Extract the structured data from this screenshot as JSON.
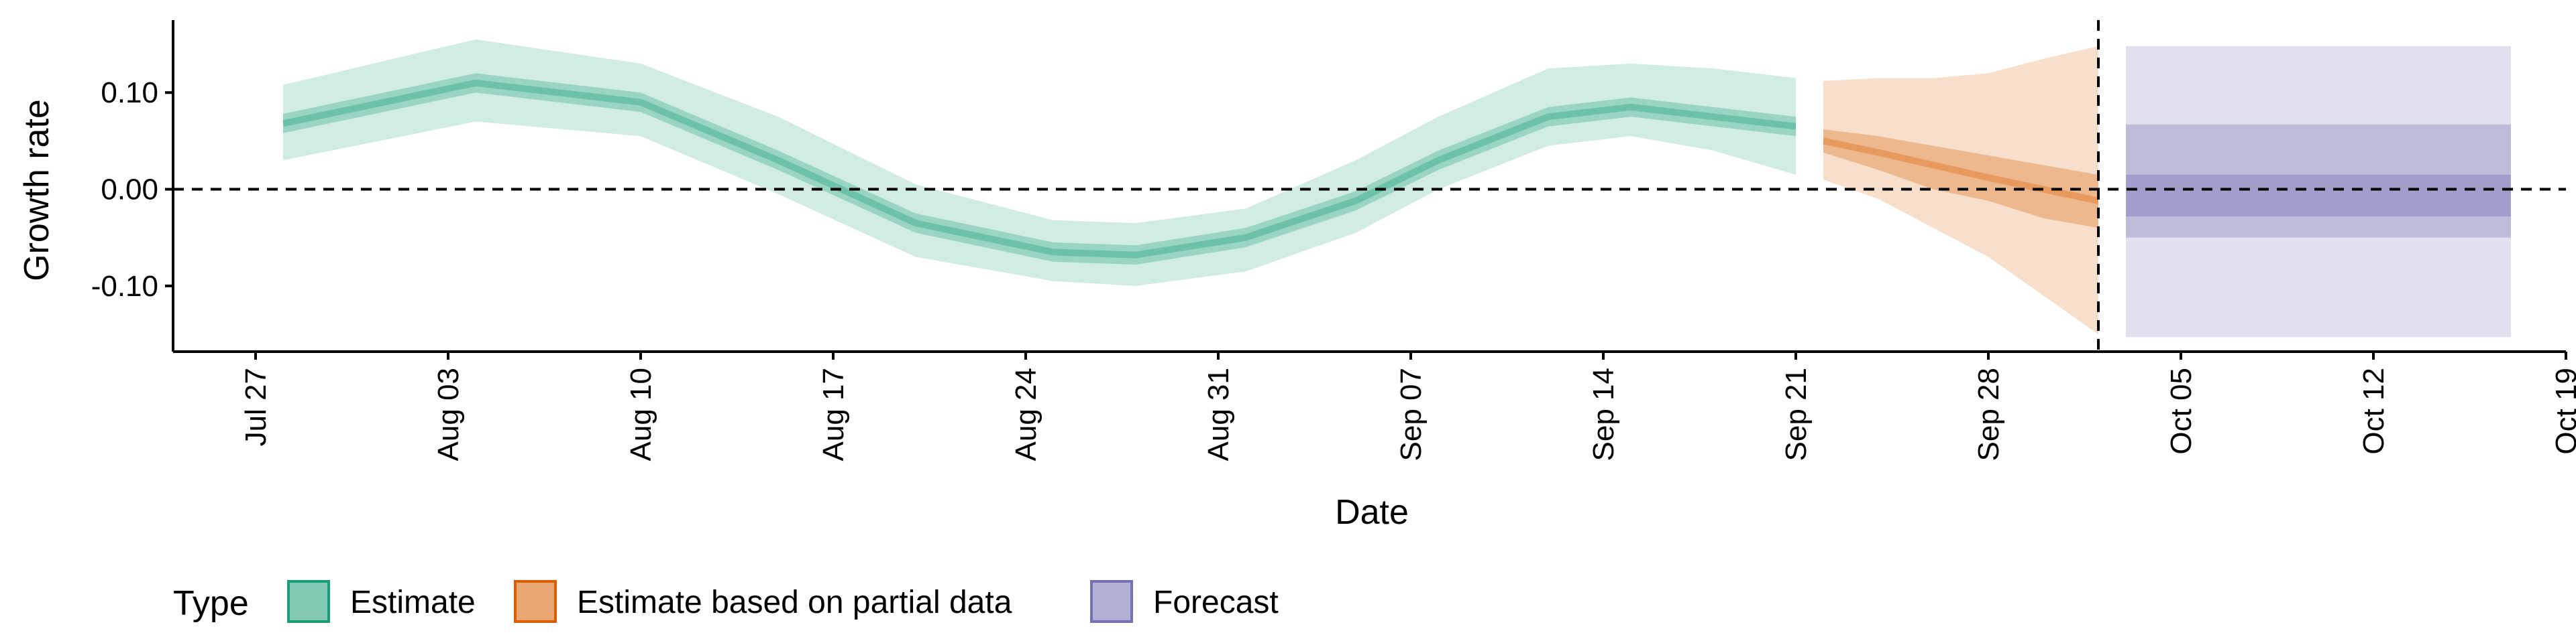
{
  "chart_data": {
    "type": "area",
    "xlabel": "Date",
    "ylabel": "Growth rate",
    "xlim": [
      "2020-07-24",
      "2020-10-19"
    ],
    "ylim": [
      -0.168,
      0.175
    ],
    "x_ticks": [
      "2020-07-27",
      "2020-08-03",
      "2020-08-10",
      "2020-08-17",
      "2020-08-24",
      "2020-08-31",
      "2020-09-07",
      "2020-09-14",
      "2020-09-21",
      "2020-09-28",
      "2020-10-05",
      "2020-10-12",
      "2020-10-19"
    ],
    "x_tick_labels": [
      "Jul 27",
      "Aug 03",
      "Aug 10",
      "Aug 17",
      "Aug 24",
      "Aug 31",
      "Sep 07",
      "Sep 14",
      "Sep 21",
      "Sep 28",
      "Oct 05",
      "Oct 12",
      "Oct 19"
    ],
    "y_ticks": [
      0.1,
      0.0,
      -0.1
    ],
    "y_tick_labels": [
      "0.10",
      "0.00",
      "-0.10"
    ],
    "reference_line_y": 0,
    "reference_line_x": "2020-10-02",
    "grid": false,
    "legend": {
      "title": "Type",
      "placement": "bottom",
      "items": [
        "Estimate",
        "Estimate based on partial data",
        "Forecast"
      ]
    },
    "colors": {
      "Estimate": "#1b9e77",
      "Estimate based on partial data": "#d95f02",
      "Forecast": "#7570b3"
    },
    "series": [
      {
        "name": "Estimate",
        "x": [
          "2020-07-28",
          "2020-08-04",
          "2020-08-10",
          "2020-08-15",
          "2020-08-20",
          "2020-08-25",
          "2020-08-28",
          "2020-09-01",
          "2020-09-05",
          "2020-09-08",
          "2020-09-12",
          "2020-09-15",
          "2020-09-18",
          "2020-09-21"
        ],
        "median": [
          0.068,
          0.11,
          0.09,
          0.03,
          -0.035,
          -0.065,
          -0.068,
          -0.05,
          -0.012,
          0.03,
          0.075,
          0.085,
          0.075,
          0.065
        ],
        "inner_low": [
          0.058,
          0.1,
          0.08,
          0.02,
          -0.045,
          -0.075,
          -0.078,
          -0.06,
          -0.022,
          0.02,
          0.065,
          0.075,
          0.065,
          0.055
        ],
        "inner_high": [
          0.078,
          0.12,
          0.1,
          0.04,
          -0.025,
          -0.055,
          -0.058,
          -0.04,
          -0.002,
          0.04,
          0.085,
          0.095,
          0.085,
          0.075
        ],
        "outer_low": [
          0.03,
          0.07,
          0.055,
          -0.005,
          -0.07,
          -0.095,
          -0.1,
          -0.085,
          -0.045,
          0.0,
          0.045,
          0.055,
          0.04,
          0.015
        ],
        "outer_high": [
          0.108,
          0.155,
          0.13,
          0.075,
          0.005,
          -0.032,
          -0.035,
          -0.02,
          0.03,
          0.075,
          0.125,
          0.13,
          0.125,
          0.115
        ]
      },
      {
        "name": "Estimate based on partial data",
        "x": [
          "2020-09-22",
          "2020-09-24",
          "2020-09-26",
          "2020-09-28",
          "2020-09-30",
          "2020-10-02"
        ],
        "median": [
          0.05,
          0.038,
          0.025,
          0.012,
          0.0,
          -0.012
        ],
        "inner_low": [
          0.038,
          0.02,
          0.0,
          -0.012,
          -0.03,
          -0.04
        ],
        "inner_high": [
          0.062,
          0.055,
          0.045,
          0.035,
          0.025,
          0.015
        ],
        "outer_low": [
          0.01,
          -0.01,
          -0.04,
          -0.07,
          -0.11,
          -0.15
        ],
        "outer_high": [
          0.112,
          0.115,
          0.115,
          0.12,
          0.135,
          0.148
        ]
      },
      {
        "name": "Forecast",
        "x": [
          "2020-10-03",
          "2020-10-17"
        ],
        "inner_low": [
          -0.028,
          -0.028
        ],
        "inner_high": [
          0.015,
          0.015
        ],
        "mid_low": [
          -0.05,
          -0.05
        ],
        "mid_high": [
          0.067,
          0.067
        ],
        "outer_low": [
          -0.153,
          -0.153
        ],
        "outer_high": [
          0.148,
          0.148
        ]
      }
    ]
  }
}
